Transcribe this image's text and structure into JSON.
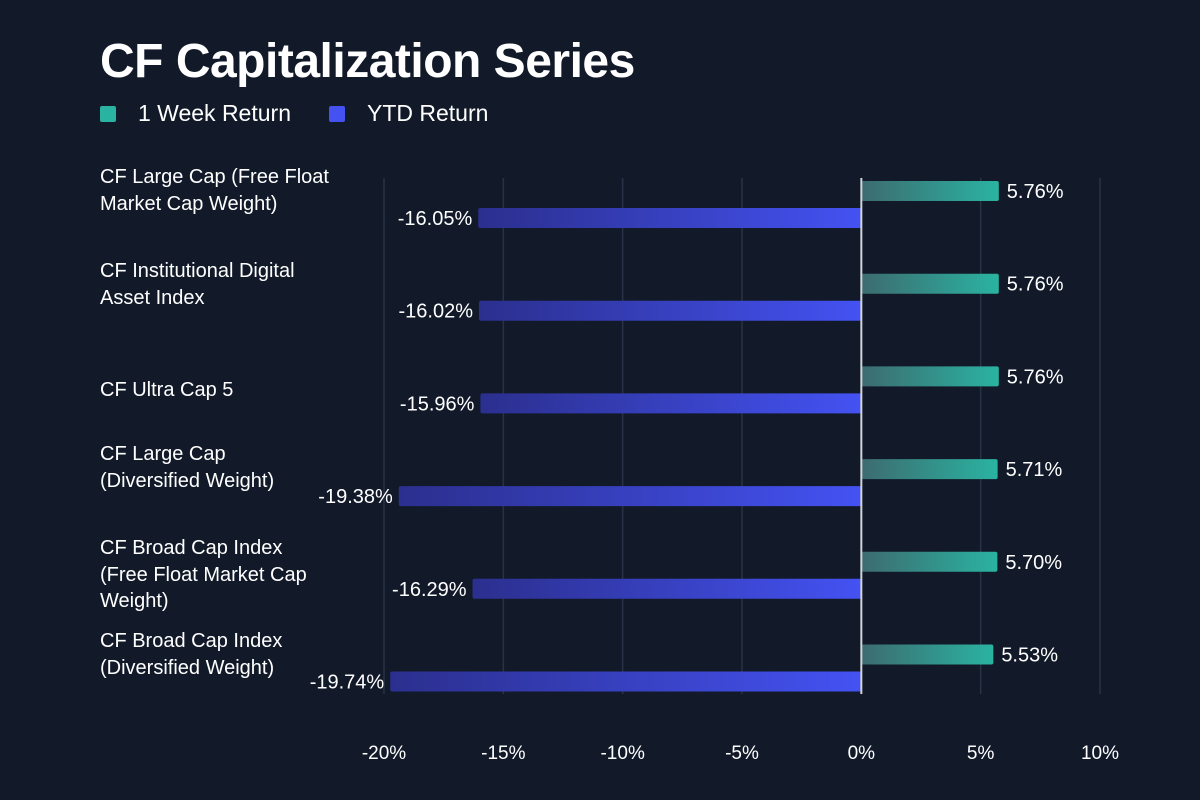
{
  "title": "CF Capitalization Series",
  "colors": {
    "background": "#121a2a",
    "week_bar": "#2ab3a1",
    "ytd_bar": "#4452f2",
    "grid": "#283246",
    "axis": "#d0d4dc"
  },
  "chart_data": {
    "type": "bar",
    "orientation": "horizontal",
    "title": "CF Capitalization Series",
    "categories": [
      "CF Large Cap (Free Float Market Cap Weight)",
      "CF Institutional Digital Asset Index",
      "CF Ultra Cap 5",
      "CF Large Cap (Diversified Weight)",
      "CF Broad Cap Index (Free Float Market Cap Weight)",
      "CF Broad Cap Index (Diversified Weight)"
    ],
    "series": [
      {
        "name": "1 Week Return",
        "values": [
          5.76,
          5.76,
          5.76,
          5.71,
          5.7,
          5.53
        ],
        "labels": [
          "5.76%",
          "5.76%",
          "5.76%",
          "5.71%",
          "5.70%",
          "5.53%"
        ]
      },
      {
        "name": "YTD Return",
        "values": [
          -16.05,
          -16.02,
          -15.96,
          -19.38,
          -16.29,
          -19.74
        ],
        "labels": [
          "-16.05%",
          "-16.02%",
          "-15.96%",
          "-19.38%",
          "-16.29%",
          "-19.74%"
        ]
      }
    ],
    "xlim": [
      -20,
      10
    ],
    "xticks": [
      -20,
      -15,
      -10,
      -5,
      0,
      5,
      10
    ],
    "xtick_labels": [
      "-20%",
      "-15%",
      "-10%",
      "-5%",
      "0%",
      "5%",
      "10%"
    ],
    "xlabel": "",
    "ylabel": "",
    "grid": true,
    "legend_position": "top-left"
  }
}
